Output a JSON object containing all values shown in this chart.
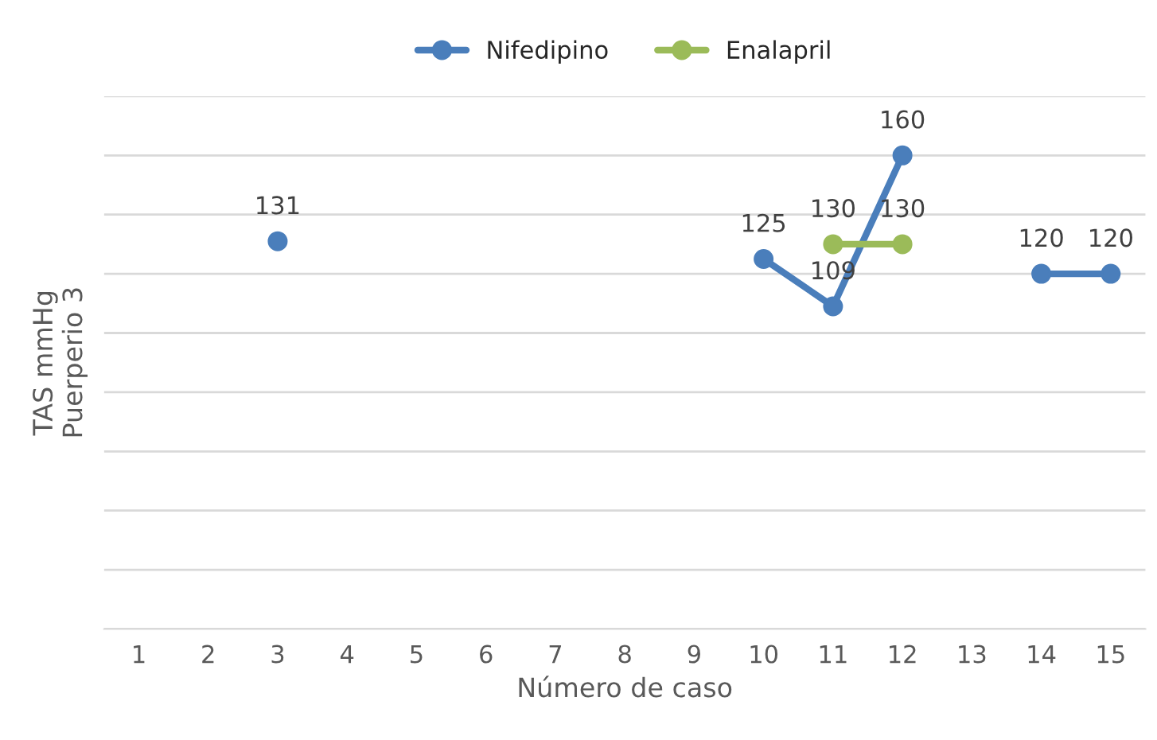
{
  "chart_data": {
    "type": "line",
    "xlabel": "Número de caso",
    "ylabel": "TAS mmHg\nPuerperio 3",
    "categories": [
      "1",
      "2",
      "3",
      "4",
      "5",
      "6",
      "7",
      "8",
      "9",
      "10",
      "11",
      "12",
      "13",
      "14",
      "15"
    ],
    "series": [
      {
        "name": "Nifedipino",
        "color": "#4a7ebb",
        "values": [
          null,
          null,
          131,
          null,
          null,
          null,
          null,
          null,
          null,
          125,
          109,
          160,
          null,
          120,
          120
        ]
      },
      {
        "name": "Enalapril",
        "color": "#9bbb59",
        "values": [
          null,
          null,
          null,
          null,
          null,
          null,
          null,
          null,
          null,
          null,
          130,
          130,
          null,
          null,
          null
        ]
      }
    ],
    "ylim": [
      0,
      180
    ],
    "yticks": [
      {
        "value": 0,
        "label": null
      },
      {
        "value": 20,
        "label": null
      },
      {
        "value": 40,
        "label": null
      },
      {
        "value": 60,
        "label": null
      },
      {
        "value": 80,
        "label": null
      },
      {
        "value": 100,
        "label": null
      },
      {
        "value": 120,
        "label": null
      },
      {
        "value": 140,
        "label": null
      },
      {
        "value": 160,
        "label": null
      },
      {
        "value": 180,
        "label": null
      }
    ],
    "grid": "y",
    "legend": "top",
    "marker": "circle",
    "line_style": "solid",
    "data_labels": true
  }
}
